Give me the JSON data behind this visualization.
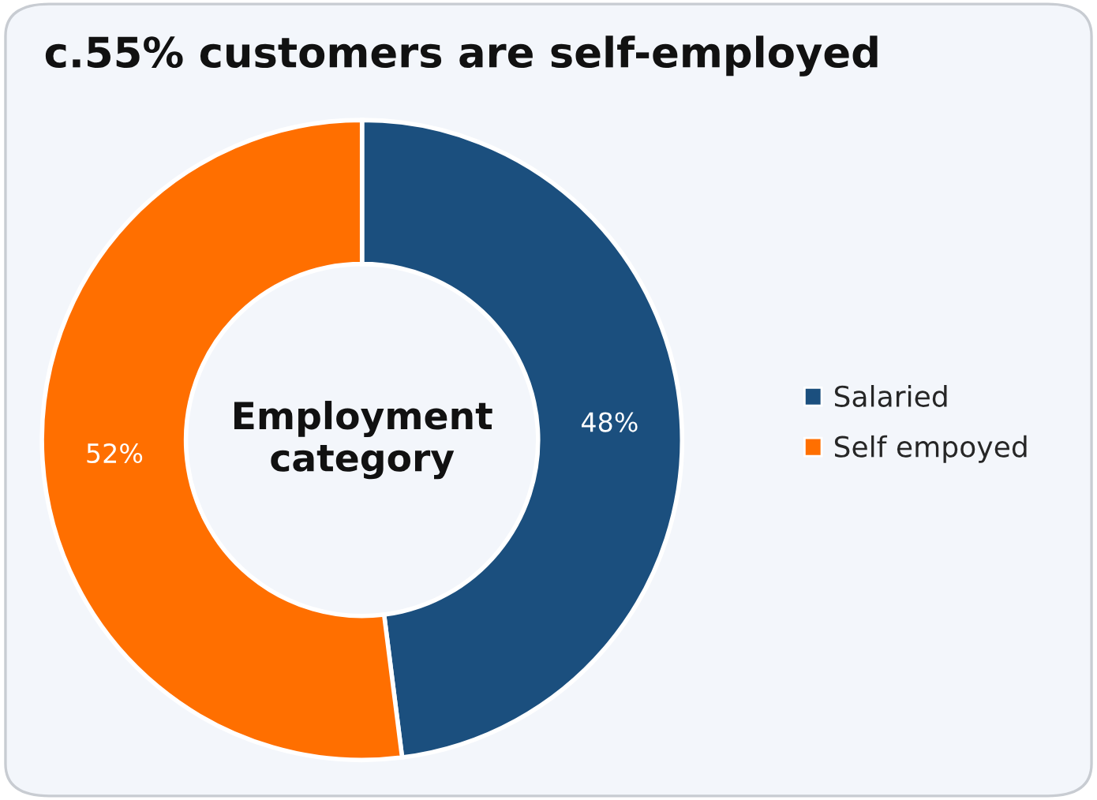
{
  "chart_data": {
    "type": "donut",
    "title": "c.55% customers are self-employed",
    "categories": [
      "Salaried",
      "Self empoyed"
    ],
    "values": [
      48,
      52
    ],
    "colors": [
      "#1b4f7e",
      "#ff6f00"
    ],
    "value_labels": [
      "48%",
      "52%"
    ],
    "annotations": [
      "Employment\ncategory"
    ],
    "legend": "right"
  }
}
